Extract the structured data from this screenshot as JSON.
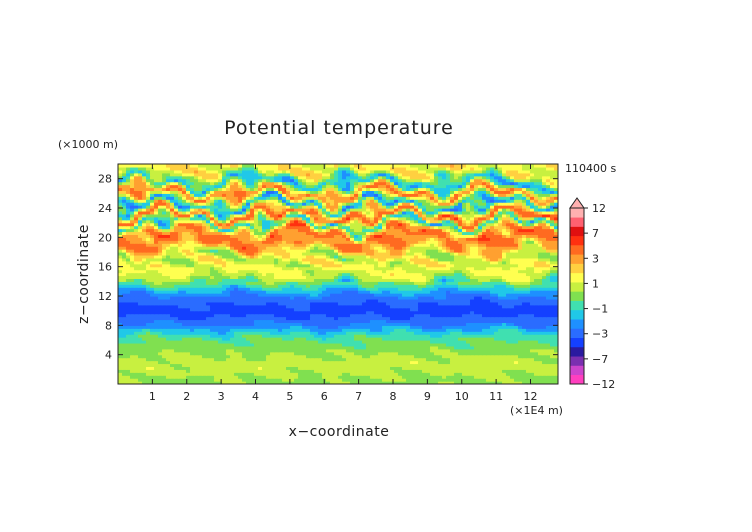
{
  "chart_data": {
    "type": "heatmap",
    "title": "Potential temperature",
    "time_label": "110400 s",
    "xlabel": "x−coordinate",
    "ylabel": "z−coordinate",
    "x_unit": "(×1E4 m)",
    "y_unit": "(×1000 m)",
    "xlim": [
      0,
      12.8
    ],
    "ylim": [
      0,
      30
    ],
    "x_ticks": [
      1,
      2,
      3,
      4,
      5,
      6,
      7,
      8,
      9,
      10,
      11,
      12
    ],
    "y_ticks": [
      4,
      8,
      12,
      16,
      20,
      24,
      28
    ],
    "colorbar": {
      "levels": [
        -12,
        -7,
        -3,
        -1,
        1,
        3,
        7,
        12
      ],
      "tick_labels": [
        "12",
        "7",
        "3",
        "1",
        "−1",
        "−3",
        "−7",
        "−12"
      ],
      "colors_low_to_high": [
        "#ff3fbf",
        "#cc44cc",
        "#7a2fb0",
        "#2a1aa0",
        "#1440ff",
        "#2a6cff",
        "#1e90ff",
        "#20c8e8",
        "#40e0b0",
        "#80e050",
        "#c8f040",
        "#ffff50",
        "#ffd040",
        "#ffa030",
        "#ff6a20",
        "#ff3010",
        "#e01010",
        "#ff6070",
        "#ffb0b0"
      ],
      "overflow_color": "#ffb0b0"
    },
    "bands": [
      {
        "z": 0.5,
        "value": 0.2
      },
      {
        "z": 2.5,
        "value": 0.8
      },
      {
        "z": 4.5,
        "value": 0.2
      },
      {
        "z": 6.5,
        "value": -0.6
      },
      {
        "z": 8.5,
        "value": -3.0
      },
      {
        "z": 10.0,
        "value": -4.2
      },
      {
        "z": 11.5,
        "value": -3.2
      },
      {
        "z": 13.0,
        "value": -1.5
      },
      {
        "z": 14.5,
        "value": 0.8
      },
      {
        "z": 16.0,
        "value": 1.5
      },
      {
        "z": 17.5,
        "value": 0.5
      },
      {
        "z": 19.0,
        "value": 3.2
      },
      {
        "z": 20.5,
        "value": 4.5
      },
      {
        "z": 22.0,
        "value": -1.5
      },
      {
        "z": 23.0,
        "value": 5.0
      },
      {
        "z": 24.5,
        "value": -2.5
      },
      {
        "z": 26.0,
        "value": 4.0
      },
      {
        "z": 27.5,
        "value": -1.8
      },
      {
        "z": 29.0,
        "value": 1.5
      }
    ]
  }
}
